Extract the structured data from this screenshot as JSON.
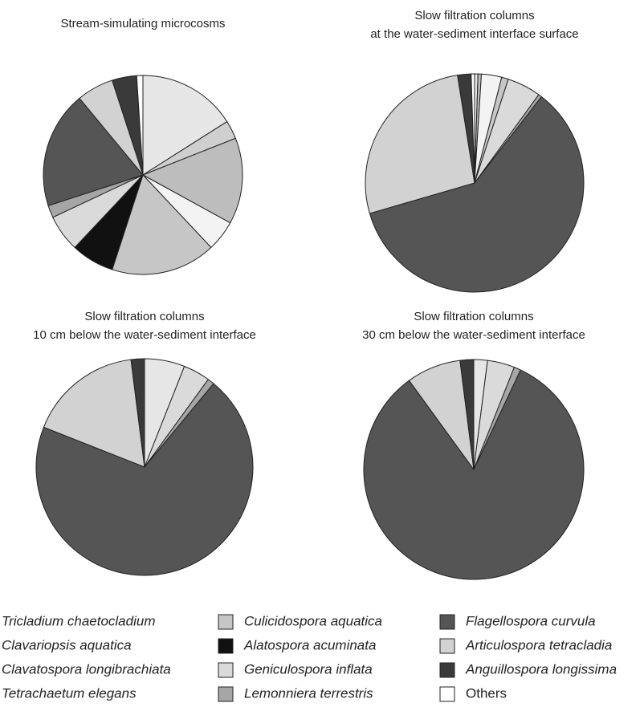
{
  "chart_data": [
    {
      "type": "pie",
      "title": [
        "Stream-simulating microcosms"
      ],
      "categories": [
        "Tricladium chaetocladium",
        "Clavariopsis aquatica",
        "Clavatospora longibrachiata",
        "Tetrachaetum elegans",
        "Culicidospora aquatica",
        "Alatospora acuminata",
        "Geniculospora inflata",
        "Lemonniera terrestris",
        "Flagellospora curvula",
        "Articulospora tetracladia",
        "Anguillospora longissima",
        "Others"
      ],
      "colors": [
        "#e6e6e6",
        "#cfcfcf",
        "#bdbdbd",
        "#f3f3f3",
        "#c6c6c6",
        "#111111",
        "#dadada",
        "#a6a6a6",
        "#555555",
        "#d2d2d2",
        "#3a3a3a",
        "#ffffff"
      ],
      "values": [
        16,
        3,
        14,
        5,
        17,
        7,
        6,
        2,
        19,
        6,
        4,
        1
      ]
    },
    {
      "type": "pie",
      "title": [
        "Slow filtration columns",
        "at the water-sediment interface surface"
      ],
      "categories": [
        "Tricladium chaetocladium",
        "Clavariopsis aquatica",
        "Clavatospora longibrachiata",
        "Tetrachaetum elegans",
        "Culicidospora aquatica",
        "Alatospora acuminata",
        "Geniculospora inflata",
        "Lemonniera terrestris",
        "Flagellospora curvula",
        "Articulospora tetracladia",
        "Anguillospora longissima",
        "Others"
      ],
      "colors": [
        "#e6e6e6",
        "#cfcfcf",
        "#bdbdbd",
        "#f3f3f3",
        "#c6c6c6",
        "#111111",
        "#dadada",
        "#a6a6a6",
        "#555555",
        "#d2d2d2",
        "#3a3a3a",
        "#ffffff"
      ],
      "values": [
        0.5,
        0,
        0.5,
        3,
        1,
        0,
        5,
        0.5,
        60,
        27,
        2,
        0.5
      ]
    },
    {
      "type": "pie",
      "title": [
        "Slow filtration columns",
        "10 cm below the water-sediment interface"
      ],
      "categories": [
        "Tricladium chaetocladium",
        "Clavariopsis aquatica",
        "Clavatospora longibrachiata",
        "Tetrachaetum elegans",
        "Culicidospora aquatica",
        "Alatospora acuminata",
        "Geniculospora inflata",
        "Lemonniera terrestris",
        "Flagellospora curvula",
        "Articulospora tetracladia",
        "Anguillospora longissima",
        "Others"
      ],
      "colors": [
        "#e6e6e6",
        "#cfcfcf",
        "#bdbdbd",
        "#f3f3f3",
        "#c6c6c6",
        "#111111",
        "#dadada",
        "#a6a6a6",
        "#555555",
        "#d2d2d2",
        "#3a3a3a",
        "#ffffff"
      ],
      "values": [
        6,
        0,
        0,
        0,
        0,
        0,
        4,
        1,
        70,
        17,
        2,
        0
      ]
    },
    {
      "type": "pie",
      "title": [
        "Slow filtration columns",
        "30 cm below the water-sediment interface"
      ],
      "categories": [
        "Tricladium chaetocladium",
        "Clavariopsis aquatica",
        "Clavatospora longibrachiata",
        "Tetrachaetum elegans",
        "Culicidospora aquatica",
        "Alatospora acuminata",
        "Geniculospora inflata",
        "Lemonniera terrestris",
        "Flagellospora curvula",
        "Articulospora tetracladia",
        "Anguillospora longissima",
        "Others"
      ],
      "colors": [
        "#e6e6e6",
        "#cfcfcf",
        "#bdbdbd",
        "#f3f3f3",
        "#c6c6c6",
        "#111111",
        "#dadada",
        "#a6a6a6",
        "#555555",
        "#d2d2d2",
        "#3a3a3a",
        "#ffffff"
      ],
      "values": [
        2,
        0,
        0,
        0,
        0,
        0,
        4,
        1,
        83,
        8,
        2,
        0
      ]
    }
  ]
}
